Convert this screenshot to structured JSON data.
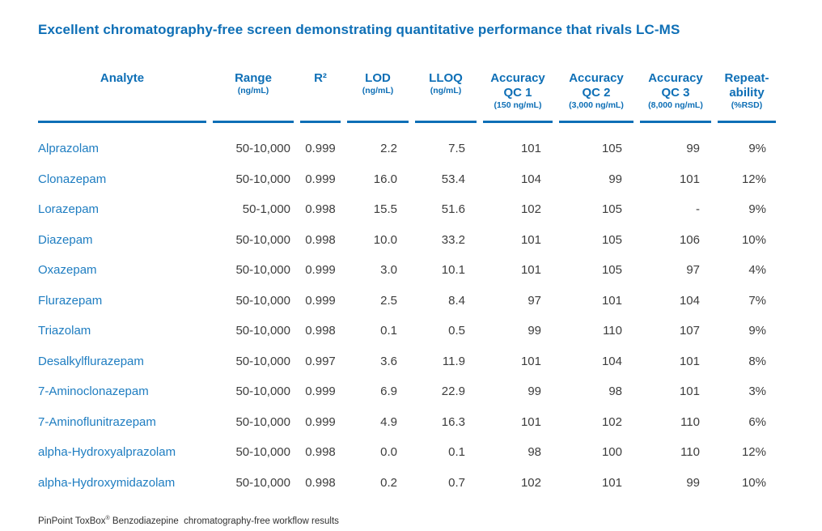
{
  "title": "Excellent chromatography-free screen demonstrating quantitative performance that rivals LC-MS",
  "colors": {
    "brand_blue": "#0E6FB6",
    "analyte_blue": "#1E7DC1",
    "value_text": "#3D3D3D"
  },
  "table": {
    "headers": [
      {
        "line1": "Analyte",
        "line2": "",
        "sub": ""
      },
      {
        "line1": "Range",
        "line2": "",
        "sub": "(ng/mL)"
      },
      {
        "line1": "R²",
        "line2": "",
        "sub": ""
      },
      {
        "line1": "LOD",
        "line2": "",
        "sub": "(ng/mL)"
      },
      {
        "line1": "LLOQ",
        "line2": "",
        "sub": "(ng/mL)"
      },
      {
        "line1": "Accuracy",
        "line2": "QC 1",
        "sub": "(150 ng/mL)"
      },
      {
        "line1": "Accuracy",
        "line2": "QC 2",
        "sub": "(3,000 ng/mL)"
      },
      {
        "line1": "Accuracy",
        "line2": "QC 3",
        "sub": "(8,000 ng/mL)"
      },
      {
        "line1": "Repeat-",
        "line2": "ability",
        "sub": "(%RSD)"
      }
    ],
    "rows": [
      [
        "Alprazolam",
        "50-10,000",
        "0.999",
        "2.2",
        "7.5",
        "101",
        "105",
        "99",
        "9%"
      ],
      [
        "Clonazepam",
        "50-10,000",
        "0.999",
        "16.0",
        "53.4",
        "104",
        "99",
        "101",
        "12%"
      ],
      [
        "Lorazepam",
        "50-1,000",
        "0.998",
        "15.5",
        "51.6",
        "102",
        "105",
        "-",
        "9%"
      ],
      [
        "Diazepam",
        "50-10,000",
        "0.998",
        "10.0",
        "33.2",
        "101",
        "105",
        "106",
        "10%"
      ],
      [
        "Oxazepam",
        "50-10,000",
        "0.999",
        "3.0",
        "10.1",
        "101",
        "105",
        "97",
        "4%"
      ],
      [
        "Flurazepam",
        "50-10,000",
        "0.999",
        "2.5",
        "8.4",
        "97",
        "101",
        "104",
        "7%"
      ],
      [
        "Triazolam",
        "50-10,000",
        "0.998",
        "0.1",
        "0.5",
        "99",
        "110",
        "107",
        "9%"
      ],
      [
        "Desalkylflurazepam",
        "50-10,000",
        "0.997",
        "3.6",
        "11.9",
        "101",
        "104",
        "101",
        "8%"
      ],
      [
        "7-Aminoclonazepam",
        "50-10,000",
        "0.999",
        "6.9",
        "22.9",
        "99",
        "98",
        "101",
        "3%"
      ],
      [
        "7-Aminoflunitrazepam",
        "50-10,000",
        "0.999",
        "4.9",
        "16.3",
        "101",
        "102",
        "110",
        "6%"
      ],
      [
        "alpha-Hydroxyalprazolam",
        "50-10,000",
        "0.998",
        "0.0",
        "0.1",
        "98",
        "100",
        "110",
        "12%"
      ],
      [
        "alpha-Hydroxymidazolam",
        "50-10,000",
        "0.998",
        "0.2",
        "0.7",
        "102",
        "101",
        "99",
        "10%"
      ]
    ]
  },
  "footer": {
    "brand": "PinPoint ToxBox",
    "reg": "®",
    "rest": " Benzodiazepine  chromatography-free workflow results"
  },
  "chart_data": {
    "type": "table",
    "title": "Excellent chromatography-free screen demonstrating quantitative performance that rivals LC-MS",
    "columns": [
      "Analyte",
      "Range (ng/mL)",
      "R²",
      "LOD (ng/mL)",
      "LLOQ (ng/mL)",
      "Accuracy QC 1 (150 ng/mL)",
      "Accuracy QC 2 (3,000 ng/mL)",
      "Accuracy QC 3 (8,000 ng/mL)",
      "Repeatability (%RSD)"
    ],
    "rows": [
      [
        "Alprazolam",
        "50-10,000",
        0.999,
        2.2,
        7.5,
        101,
        105,
        99,
        "9%"
      ],
      [
        "Clonazepam",
        "50-10,000",
        0.999,
        16.0,
        53.4,
        104,
        99,
        101,
        "12%"
      ],
      [
        "Lorazepam",
        "50-1,000",
        0.998,
        15.5,
        51.6,
        102,
        105,
        null,
        "9%"
      ],
      [
        "Diazepam",
        "50-10,000",
        0.998,
        10.0,
        33.2,
        101,
        105,
        106,
        "10%"
      ],
      [
        "Oxazepam",
        "50-10,000",
        0.999,
        3.0,
        10.1,
        101,
        105,
        97,
        "4%"
      ],
      [
        "Flurazepam",
        "50-10,000",
        0.999,
        2.5,
        8.4,
        97,
        101,
        104,
        "7%"
      ],
      [
        "Triazolam",
        "50-10,000",
        0.998,
        0.1,
        0.5,
        99,
        110,
        107,
        "9%"
      ],
      [
        "Desalkylflurazepam",
        "50-10,000",
        0.997,
        3.6,
        11.9,
        101,
        104,
        101,
        "8%"
      ],
      [
        "7-Aminoclonazepam",
        "50-10,000",
        0.999,
        6.9,
        22.9,
        99,
        98,
        101,
        "3%"
      ],
      [
        "7-Aminoflunitrazepam",
        "50-10,000",
        0.999,
        4.9,
        16.3,
        101,
        102,
        110,
        "6%"
      ],
      [
        "alpha-Hydroxyalprazolam",
        "50-10,000",
        0.998,
        0.0,
        0.1,
        98,
        100,
        110,
        "12%"
      ],
      [
        "alpha-Hydroxymidazolam",
        "50-10,000",
        0.998,
        0.2,
        0.7,
        102,
        101,
        99,
        "10%"
      ]
    ]
  }
}
